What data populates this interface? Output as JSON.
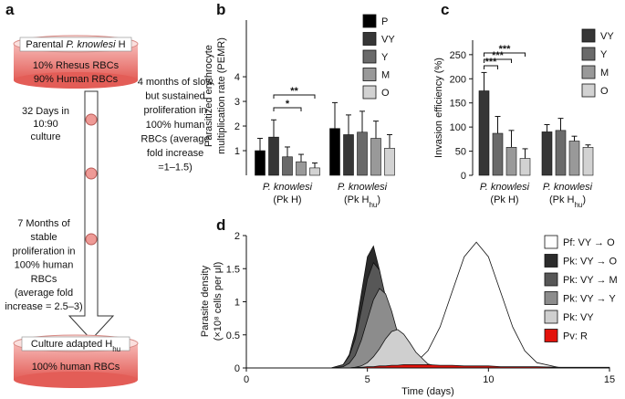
{
  "panel_labels": [
    "a",
    "b",
    "c",
    "d"
  ],
  "diagram": {
    "top_dish": {
      "title": [
        "Parental ",
        "P. knowlesi",
        " H"
      ],
      "lines": [
        "10% Rhesus RBCs",
        "90% Human RBCs"
      ]
    },
    "step1": [
      "32 Days in",
      "10:90",
      "culture"
    ],
    "step2": [
      "4 months of slow",
      "but sustained",
      "proliferation in",
      "100% human",
      "RBCs (average",
      "fold increase",
      "=1–1.5)"
    ],
    "step3": [
      "7 Months of",
      "stable",
      "proliferation in",
      "100% human",
      "RBCs",
      "(average fold",
      "increase = 2.5–3)"
    ],
    "bottom_dish": {
      "title": [
        "Culture adapted H",
        "hu"
      ],
      "lines": [
        "100% human RBCs"
      ]
    }
  },
  "chart_data": [
    {
      "type": "bar",
      "y_label": [
        "Parasitized erythrocyte",
        "multiplication rate (PEMR)"
      ],
      "categories": [
        [
          "P. knowlesi",
          "(Pk H)"
        ],
        [
          "P. knowlesi",
          "(Pk  H",
          "hu",
          ")"
        ]
      ],
      "series": [
        {
          "name": "P",
          "color": "#000000",
          "values": [
            1.0,
            1.9
          ],
          "errors": [
            0.5,
            1.05
          ]
        },
        {
          "name": "VY",
          "color": "#363636",
          "values": [
            1.55,
            1.65
          ],
          "errors": [
            0.7,
            0.8
          ]
        },
        {
          "name": "Y",
          "color": "#6a6a6a",
          "values": [
            0.75,
            1.75
          ],
          "errors": [
            0.4,
            0.85
          ]
        },
        {
          "name": "M",
          "color": "#999999",
          "values": [
            0.55,
            1.5
          ],
          "errors": [
            0.3,
            0.7
          ]
        },
        {
          "name": "O",
          "color": "#d2d2d2",
          "values": [
            0.3,
            1.1
          ],
          "errors": [
            0.2,
            0.55
          ]
        }
      ],
      "annotations": [
        "**",
        "*"
      ],
      "ylim": [
        0,
        6.3
      ],
      "yticks": [
        1,
        2,
        3,
        4
      ]
    },
    {
      "type": "bar",
      "y_label": [
        "Invasion efficiency (%)"
      ],
      "categories": [
        [
          "P. knowlesi",
          "(Pk H)"
        ],
        [
          "P. knowlesi",
          "(Pk  H",
          "hu",
          ")"
        ]
      ],
      "series": [
        {
          "name": "VY",
          "color": "#363636",
          "values": [
            175,
            90
          ],
          "errors": [
            38,
            15
          ]
        },
        {
          "name": "Y",
          "color": "#6a6a6a",
          "values": [
            87,
            93
          ],
          "errors": [
            35,
            25
          ]
        },
        {
          "name": "M",
          "color": "#999999",
          "values": [
            58,
            71
          ],
          "errors": [
            35,
            10
          ]
        },
        {
          "name": "O",
          "color": "#d2d2d2",
          "values": [
            35,
            58
          ],
          "errors": [
            20,
            5
          ]
        }
      ],
      "annotations": [
        "***",
        "***",
        "***"
      ],
      "ylim": [
        0,
        280
      ],
      "yticks": [
        0,
        50,
        100,
        150,
        200,
        250
      ]
    },
    {
      "type": "area",
      "y_label": [
        "Parasite density",
        "(×10⁸ cells per μl)"
      ],
      "x_label": "Time (days)",
      "x": [
        0,
        1,
        2,
        3,
        3.5,
        4,
        4.25,
        4.5,
        4.75,
        5,
        5.25,
        5.5,
        5.75,
        6,
        6.25,
        6.5,
        6.75,
        7,
        7.5,
        8,
        8.5,
        9,
        9.5,
        10,
        10.5,
        11,
        11.5,
        12,
        13,
        14,
        15
      ],
      "series": [
        {
          "name": "Pf: VY → O",
          "color": "#ffffff",
          "values": [
            0,
            0,
            0,
            0,
            0,
            0,
            0,
            0,
            0,
            0,
            0,
            0,
            0,
            0,
            0.01,
            0.02,
            0.04,
            0.08,
            0.26,
            0.62,
            1.15,
            1.68,
            1.9,
            1.68,
            1.15,
            0.62,
            0.26,
            0.08,
            0,
            0,
            0
          ]
        },
        {
          "name": "Pk: VY → O",
          "color": "#2b2b2b",
          "values": [
            0,
            0,
            0,
            0,
            0,
            0.05,
            0.2,
            0.55,
            1.12,
            1.68,
            1.84,
            1.48,
            0.88,
            0.38,
            0.12,
            0.03,
            0,
            0,
            0,
            0,
            0,
            0,
            0,
            0,
            0,
            0,
            0,
            0,
            0,
            0,
            0
          ]
        },
        {
          "name": "Pk: VY → M",
          "color": "#575757",
          "values": [
            0,
            0,
            0,
            0,
            0,
            0.05,
            0.18,
            0.44,
            0.87,
            1.34,
            1.59,
            1.48,
            1.07,
            0.6,
            0.26,
            0.09,
            0.02,
            0,
            0,
            0,
            0,
            0,
            0,
            0,
            0,
            0,
            0,
            0,
            0,
            0,
            0
          ]
        },
        {
          "name": "Pk: VY → Y",
          "color": "#8c8c8c",
          "values": [
            0,
            0,
            0,
            0,
            0,
            0.02,
            0.07,
            0.19,
            0.42,
            0.73,
            1.03,
            1.2,
            1.12,
            0.86,
            0.53,
            0.27,
            0.11,
            0.04,
            0,
            0,
            0,
            0,
            0,
            0,
            0,
            0,
            0,
            0,
            0,
            0,
            0
          ]
        },
        {
          "name": "Pk: VY",
          "color": "#cfcfcf",
          "values": [
            0,
            0,
            0,
            0,
            0,
            0,
            0,
            0.01,
            0.03,
            0.08,
            0.17,
            0.29,
            0.44,
            0.55,
            0.58,
            0.51,
            0.38,
            0.24,
            0.06,
            0.01,
            0,
            0,
            0,
            0,
            0,
            0,
            0,
            0,
            0,
            0,
            0
          ]
        },
        {
          "name": "Pv: R",
          "color": "#e3120b",
          "values": [
            0,
            0,
            0,
            0,
            0,
            0,
            0,
            0.01,
            0.01,
            0.02,
            0.02,
            0.03,
            0.03,
            0.04,
            0.04,
            0.05,
            0.05,
            0.05,
            0.05,
            0.04,
            0.04,
            0.03,
            0.03,
            0.03,
            0.02,
            0.02,
            0.02,
            0.02,
            0.01,
            0.01,
            0.01
          ]
        }
      ],
      "xlim": [
        0,
        15
      ],
      "xticks": [
        0,
        5,
        10,
        15
      ],
      "ylim": [
        0,
        2
      ],
      "yticks": [
        0,
        0.5,
        1,
        1.5,
        2
      ]
    }
  ]
}
